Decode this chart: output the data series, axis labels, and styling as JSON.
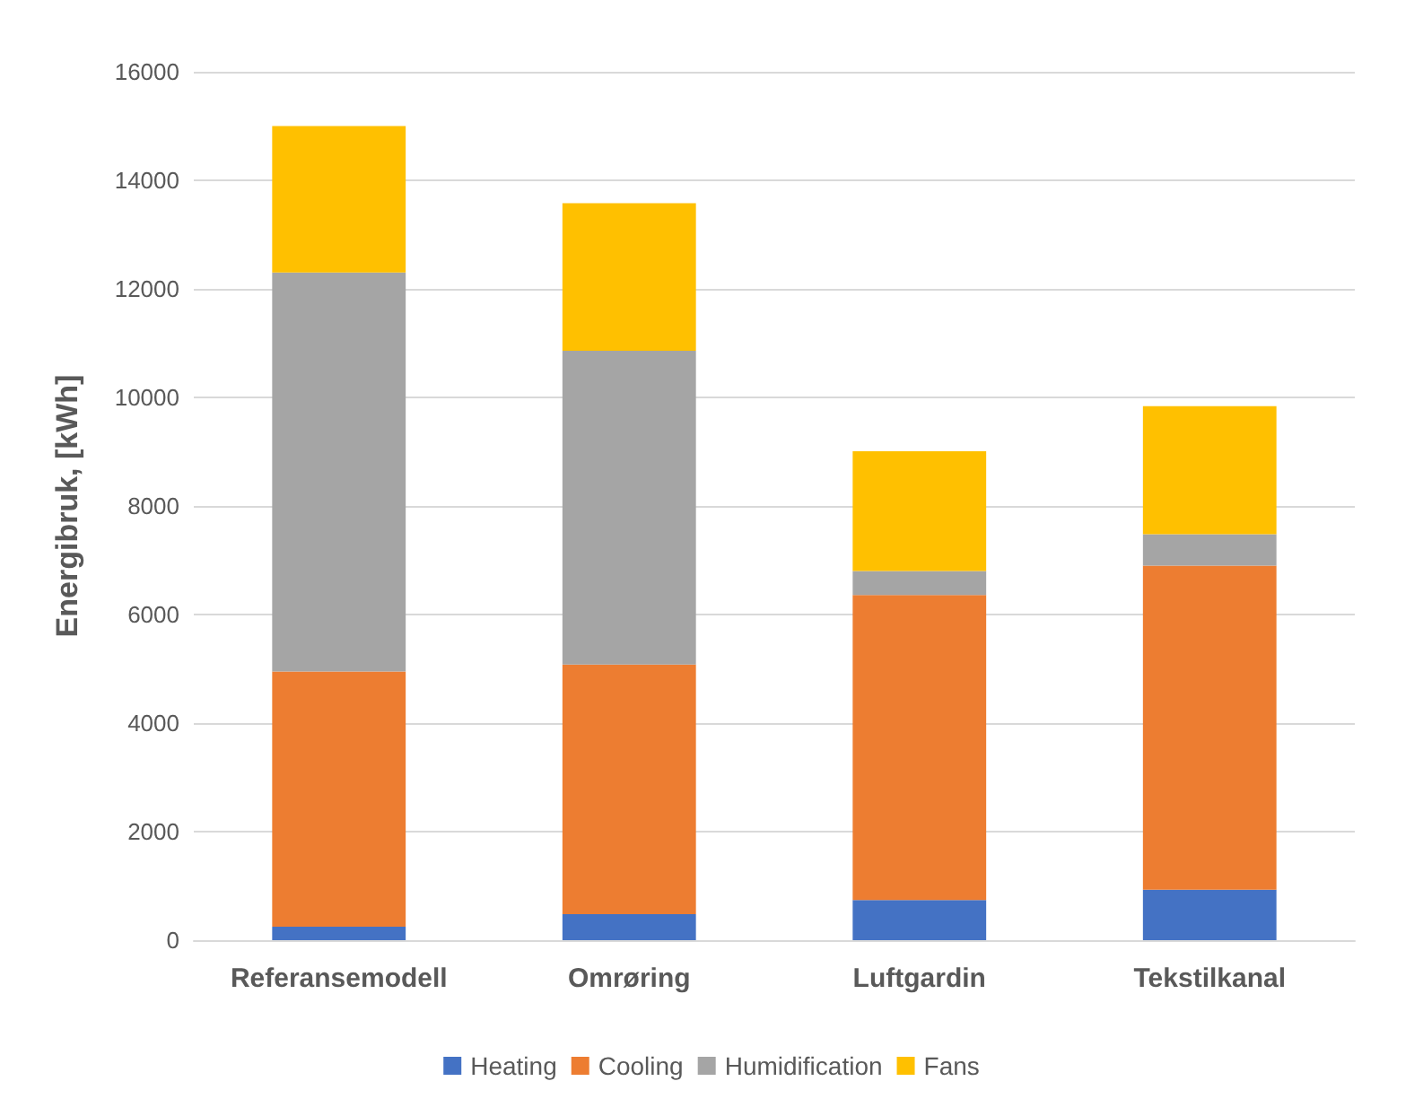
{
  "chart_data": {
    "type": "bar",
    "stacked": true,
    "ylabel": "Energibruk, [kWh]",
    "categories": [
      "Referansemodell",
      "Omrøring",
      "Luftgardin",
      "Tekstilkanal"
    ],
    "series": [
      {
        "name": "Heating",
        "color": "#4472c4",
        "values": [
          250,
          480,
          740,
          930
        ]
      },
      {
        "name": "Cooling",
        "color": "#ed7d31",
        "values": [
          4700,
          4600,
          5620,
          5970
        ]
      },
      {
        "name": "Humidification",
        "color": "#a5a5a5",
        "values": [
          7350,
          5780,
          440,
          580
        ]
      },
      {
        "name": "Fans",
        "color": "#ffc000",
        "values": [
          2700,
          2720,
          2210,
          2360
        ]
      }
    ],
    "ylim": [
      0,
      16000
    ],
    "yticks": [
      0,
      2000,
      4000,
      6000,
      8000,
      10000,
      12000,
      14000,
      16000
    ],
    "grid": "y",
    "legend": "bottom"
  }
}
